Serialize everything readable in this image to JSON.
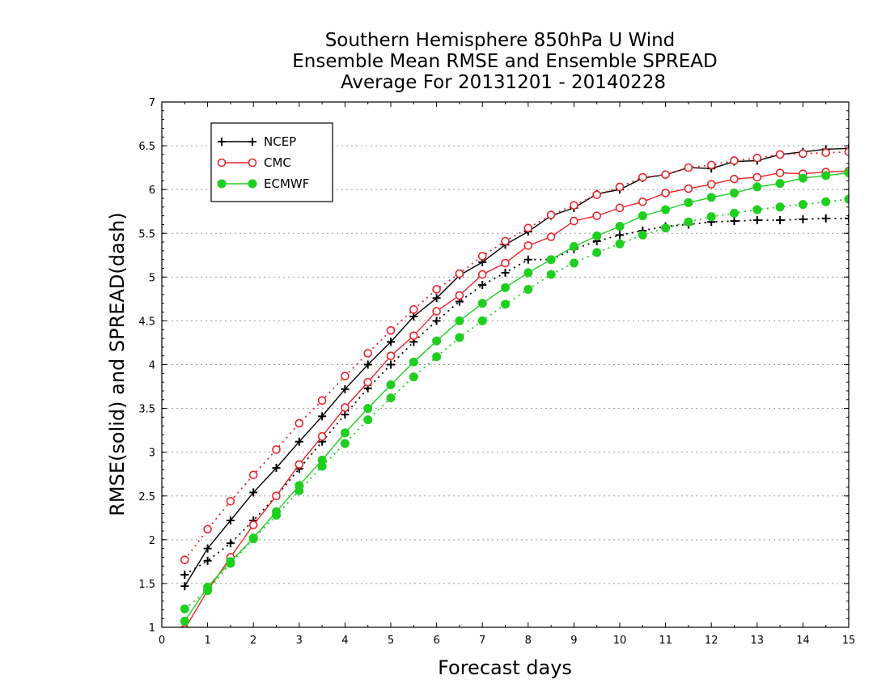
{
  "chart_data": {
    "type": "line",
    "title": [
      "Southern Hemisphere 850hPa U Wind",
      "Ensemble Mean RMSE and Ensemble SPREAD",
      "Average For 20131201 - 20140228"
    ],
    "xlabel": "Forecast days",
    "ylabel": "RMSE(solid) and SPREAD(dash)",
    "xlim": [
      0,
      15
    ],
    "ylim": [
      1,
      7
    ],
    "xticks": [
      "0",
      "1",
      "2",
      "3",
      "4",
      "5",
      "6",
      "7",
      "8",
      "9",
      "10",
      "11",
      "12",
      "13",
      "14",
      "15"
    ],
    "yticks": [
      "1",
      "1.5",
      "2",
      "2.5",
      "3",
      "3.5",
      "4",
      "4.5",
      "5",
      "5.5",
      "6",
      "6.5",
      "7"
    ],
    "grid": "horizontal dotted",
    "legend_position": "top-left",
    "x": [
      0.5,
      1,
      1.5,
      2,
      2.5,
      3,
      3.5,
      4,
      4.5,
      5,
      5.5,
      6,
      6.5,
      7,
      7.5,
      8,
      8.5,
      9,
      9.5,
      10,
      10.5,
      11,
      11.5,
      12,
      12.5,
      13,
      13.5,
      14,
      14.5,
      15
    ],
    "series": [
      {
        "name": "NCEP",
        "color": "#000000",
        "marker": "plus",
        "rmse": [
          1.47,
          1.9,
          2.22,
          2.54,
          2.82,
          3.12,
          3.41,
          3.72,
          4.0,
          4.26,
          4.55,
          4.76,
          5.02,
          5.17,
          5.37,
          5.52,
          5.7,
          5.79,
          5.95,
          6.0,
          6.13,
          6.17,
          6.25,
          6.24,
          6.32,
          6.33,
          6.4,
          6.43,
          6.46,
          6.47
        ],
        "spread": [
          1.6,
          1.76,
          1.96,
          2.22,
          2.5,
          2.81,
          3.12,
          3.43,
          3.73,
          4.0,
          4.26,
          4.5,
          4.72,
          4.91,
          5.05,
          5.2,
          5.2,
          5.32,
          5.41,
          5.48,
          5.53,
          5.58,
          5.6,
          5.63,
          5.64,
          5.65,
          5.65,
          5.66,
          5.67,
          5.67
        ]
      },
      {
        "name": "CMC",
        "color": "#e8242b",
        "marker": "open-circle",
        "rmse": [
          0.98,
          1.42,
          1.8,
          2.17,
          2.5,
          2.86,
          3.18,
          3.51,
          3.8,
          4.1,
          4.33,
          4.61,
          4.79,
          5.03,
          5.16,
          5.36,
          5.46,
          5.64,
          5.7,
          5.79,
          5.86,
          5.96,
          6.01,
          6.06,
          6.12,
          6.14,
          6.19,
          6.18,
          6.2,
          6.21
        ],
        "spread": [
          1.77,
          2.12,
          2.44,
          2.74,
          3.03,
          3.33,
          3.59,
          3.87,
          4.13,
          4.39,
          4.63,
          4.86,
          5.04,
          5.24,
          5.41,
          5.56,
          5.71,
          5.82,
          5.94,
          6.03,
          6.14,
          6.17,
          6.25,
          6.28,
          6.33,
          6.36,
          6.4,
          6.41,
          6.42,
          6.43
        ]
      },
      {
        "name": "ECMWF",
        "color": "#1fcf1f",
        "marker": "filled-circle",
        "rmse": [
          1.07,
          1.46,
          1.75,
          2.02,
          2.32,
          2.62,
          2.91,
          3.22,
          3.5,
          3.77,
          4.03,
          4.27,
          4.5,
          4.7,
          4.88,
          5.05,
          5.2,
          5.35,
          5.47,
          5.58,
          5.7,
          5.77,
          5.85,
          5.91,
          5.96,
          6.03,
          6.07,
          6.13,
          6.16,
          6.19
        ],
        "spread": [
          1.21,
          1.42,
          1.73,
          2.01,
          2.28,
          2.56,
          2.84,
          3.1,
          3.37,
          3.62,
          3.86,
          4.09,
          4.31,
          4.5,
          4.69,
          4.86,
          5.03,
          5.16,
          5.28,
          5.38,
          5.48,
          5.56,
          5.63,
          5.69,
          5.73,
          5.77,
          5.8,
          5.83,
          5.86,
          5.89
        ]
      }
    ]
  }
}
